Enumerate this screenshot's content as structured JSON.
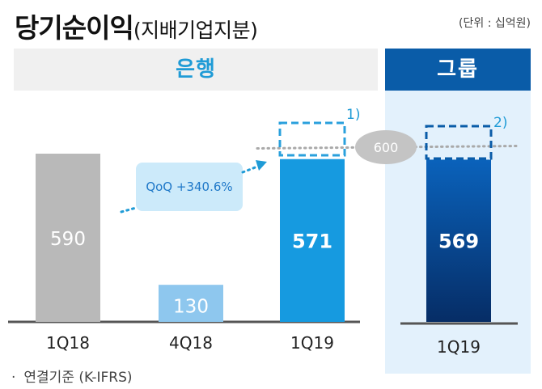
{
  "title": {
    "main": "당기순이익",
    "sub": "(지배기업지분)"
  },
  "unit_note": "(단위 : 십억원)",
  "sections": {
    "bank": "은행",
    "group": "그룹"
  },
  "annotation": {
    "qoq": "QoQ +340.6%",
    "reference_value": "600"
  },
  "footnote_markers": [
    "1)",
    "2)"
  ],
  "footnote": "연결기준 (K-IFRS)",
  "chart_data": {
    "type": "bar",
    "categories": [
      "1Q18",
      "4Q18",
      "1Q19",
      "1Q19"
    ],
    "values": [
      590,
      130,
      571,
      569
    ],
    "data_labels": [
      "590",
      "130",
      "571",
      "569"
    ],
    "groups": [
      "은행",
      "은행",
      "은행",
      "그룹"
    ],
    "reference_line": 600,
    "ylim": [
      0,
      700
    ],
    "grid": false,
    "title": "",
    "xlabel": "",
    "ylabel": ""
  },
  "colors": {
    "bar_1q18": "#b9b9b9",
    "bar_4q18": "#8ec7ee",
    "bar_bank_1q19": "#169ae0",
    "bar_group_1q19_top": "#0a62bb",
    "bar_group_1q19_bottom": "#062d66",
    "band_bank_text": "#1f9bd6",
    "band_group": "#0a5ca8",
    "group_panel": "#e3f1fc",
    "qoq_box": "#cceafa",
    "reference_badge": "#c4c4c4"
  }
}
